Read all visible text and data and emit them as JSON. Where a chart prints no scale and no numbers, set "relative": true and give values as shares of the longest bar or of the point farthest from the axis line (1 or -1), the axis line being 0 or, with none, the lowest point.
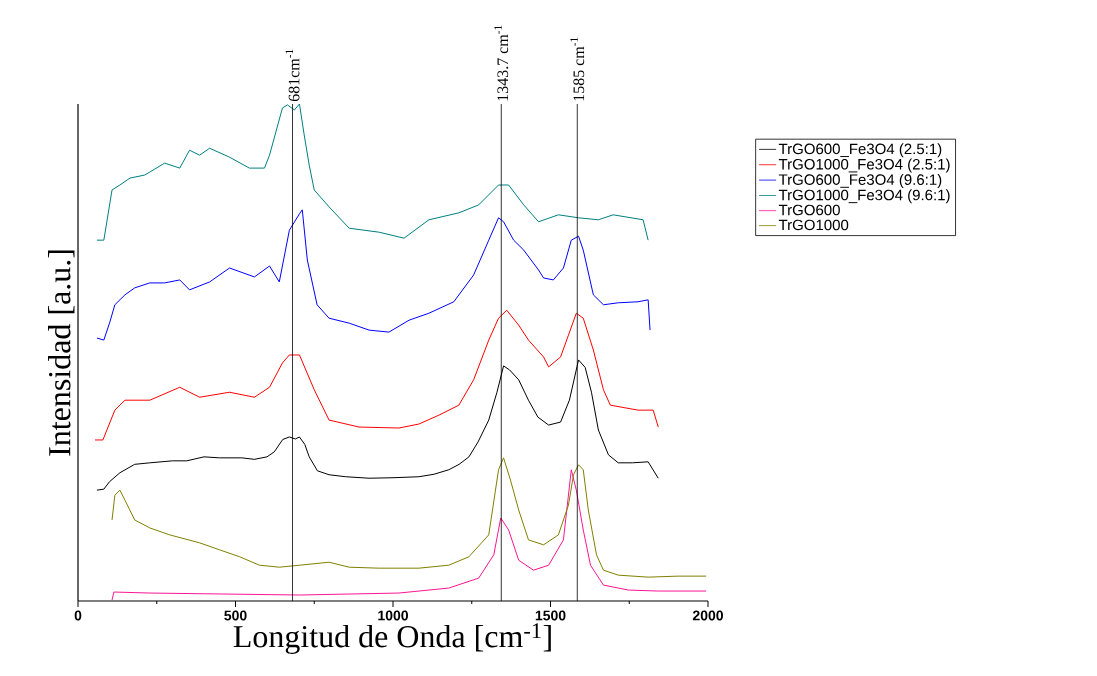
{
  "chart_data": {
    "type": "line",
    "relative": true,
    "xlabel": "Longitud de Onda  [cm$^{-1}$]",
    "ylabel": "Intensidad [a.u.]",
    "xlim": [
      0,
      2000
    ],
    "xticks": [
      0,
      500,
      1000,
      1500,
      2000
    ],
    "legend": "right",
    "ref_lines": [
      {
        "axis": "x",
        "value": 681,
        "label": "681cm$^{-1}$",
        "color": "#000000"
      },
      {
        "axis": "x",
        "value": 1343.7,
        "label": "1343.7 cm$^{-1}$",
        "color": "#000000"
      },
      {
        "axis": "x",
        "value": 1585,
        "label": "1585 cm$^{-1}$",
        "color": "#000000"
      }
    ],
    "series": [
      {
        "name": "TrGO600_Fe3O4 (2.5:1)",
        "color": "#000000",
        "x": [
          60,
          82,
          100,
          133,
          180,
          228,
          300,
          345,
          400,
          449,
          520,
          560,
          600,
          623,
          650,
          671,
          690,
          703,
          720,
          734,
          760,
          797,
          850,
          924,
          1000,
          1082,
          1130,
          1177,
          1210,
          1241,
          1270,
          1304,
          1330,
          1351,
          1370,
          1399,
          1430,
          1460,
          1494,
          1532,
          1560,
          1589,
          1610,
          1630,
          1652,
          1684,
          1715,
          1760,
          1810,
          1842
        ],
        "values": [
          0.223,
          0.225,
          0.24,
          0.258,
          0.275,
          0.278,
          0.282,
          0.282,
          0.29,
          0.288,
          0.288,
          0.285,
          0.29,
          0.3,
          0.325,
          0.33,
          0.326,
          0.33,
          0.315,
          0.29,
          0.262,
          0.254,
          0.25,
          0.247,
          0.248,
          0.25,
          0.255,
          0.264,
          0.275,
          0.29,
          0.32,
          0.364,
          0.42,
          0.473,
          0.465,
          0.445,
          0.404,
          0.37,
          0.354,
          0.36,
          0.404,
          0.485,
          0.47,
          0.42,
          0.344,
          0.294,
          0.278,
          0.278,
          0.28,
          0.247
        ]
      },
      {
        "name": "TrGO1000_Fe3O4 (2.5:1)",
        "color": "#ff0000",
        "x": [
          54,
          79,
          117,
          149,
          228,
          323,
          386,
          481,
          560,
          608,
          649,
          671,
          703,
          750,
          797,
          892,
          1019,
          1082,
          1146,
          1209,
          1256,
          1304,
          1335,
          1361,
          1399,
          1430,
          1478,
          1494,
          1532,
          1557,
          1582,
          1604,
          1636,
          1668,
          1690,
          1778,
          1826,
          1842
        ],
        "values": [
          0.324,
          0.324,
          0.384,
          0.404,
          0.404,
          0.43,
          0.41,
          0.42,
          0.41,
          0.43,
          0.479,
          0.495,
          0.495,
          0.425,
          0.364,
          0.35,
          0.348,
          0.356,
          0.374,
          0.394,
          0.445,
          0.525,
          0.569,
          0.585,
          0.555,
          0.525,
          0.491,
          0.471,
          0.491,
          0.535,
          0.579,
          0.569,
          0.505,
          0.425,
          0.394,
          0.384,
          0.384,
          0.35
        ]
      },
      {
        "name": "TrGO600_Fe3O4 (9.6:1)",
        "color": "#0000ff",
        "x": [
          60,
          82,
          101,
          117,
          149,
          180,
          228,
          275,
          323,
          354,
          418,
          481,
          560,
          608,
          639,
          671,
          703,
          712,
          728,
          759,
          797,
          861,
          924,
          987,
          1051,
          1114,
          1193,
          1256,
          1304,
          1335,
          1351,
          1383,
          1415,
          1462,
          1478,
          1509,
          1541,
          1566,
          1589,
          1604,
          1636,
          1668,
          1715,
          1778,
          1810,
          1816
        ],
        "values": [
          0.529,
          0.525,
          0.561,
          0.596,
          0.616,
          0.63,
          0.64,
          0.64,
          0.646,
          0.626,
          0.642,
          0.67,
          0.652,
          0.674,
          0.642,
          0.746,
          0.779,
          0.787,
          0.686,
          0.596,
          0.569,
          0.559,
          0.545,
          0.541,
          0.565,
          0.579,
          0.602,
          0.656,
          0.726,
          0.771,
          0.763,
          0.726,
          0.706,
          0.666,
          0.65,
          0.646,
          0.67,
          0.726,
          0.734,
          0.706,
          0.616,
          0.596,
          0.6,
          0.602,
          0.606,
          0.545
        ]
      },
      {
        "name": "TrGO1000_Fe3O4 (9.6:1)",
        "color": "#008080",
        "x": [
          60,
          82,
          108,
          133,
          165,
          212,
          275,
          323,
          354,
          386,
          418,
          481,
          544,
          592,
          608,
          649,
          665,
          687,
          703,
          718,
          734,
          750,
          797,
          861,
          956,
          1035,
          1114,
          1209,
          1272,
          1335,
          1367,
          1415,
          1462,
          1525,
          1589,
          1652,
          1699,
          1794,
          1810
        ],
        "values": [
          0.726,
          0.726,
          0.827,
          0.837,
          0.851,
          0.857,
          0.881,
          0.871,
          0.907,
          0.897,
          0.911,
          0.893,
          0.871,
          0.871,
          0.897,
          0.992,
          0.998,
          0.988,
          1.0,
          0.938,
          0.877,
          0.827,
          0.793,
          0.75,
          0.742,
          0.73,
          0.767,
          0.781,
          0.797,
          0.837,
          0.837,
          0.797,
          0.763,
          0.777,
          0.771,
          0.767,
          0.777,
          0.767,
          0.726
        ]
      },
      {
        "name": "TrGO600",
        "color": "#ff1493",
        "x": [
          108,
          114,
          228,
          703,
          1019,
          1177,
          1272,
          1320,
          1342,
          1367,
          1399,
          1446,
          1494,
          1541,
          1566,
          1582,
          1604,
          1627,
          1668,
          1747,
          1842,
          1994
        ],
        "values": [
          0.002,
          0.018,
          0.016,
          0.012,
          0.016,
          0.026,
          0.046,
          0.093,
          0.167,
          0.143,
          0.082,
          0.062,
          0.072,
          0.123,
          0.264,
          0.223,
          0.143,
          0.072,
          0.032,
          0.022,
          0.02,
          0.02
        ]
      },
      {
        "name": "TrGO1000",
        "color": "#808000",
        "x": [
          108,
          117,
          133,
          149,
          180,
          228,
          291,
          386,
          449,
          513,
          576,
          639,
          703,
          797,
          861,
          956,
          1082,
          1177,
          1241,
          1304,
          1335,
          1351,
          1373,
          1399,
          1430,
          1478,
          1525,
          1557,
          1573,
          1589,
          1604,
          1620,
          1646,
          1668,
          1715,
          1810,
          1905,
          1994
        ],
        "values": [
          0.163,
          0.213,
          0.223,
          0.203,
          0.163,
          0.147,
          0.133,
          0.117,
          0.103,
          0.089,
          0.072,
          0.068,
          0.072,
          0.078,
          0.068,
          0.066,
          0.066,
          0.072,
          0.089,
          0.133,
          0.264,
          0.288,
          0.243,
          0.183,
          0.123,
          0.113,
          0.133,
          0.193,
          0.254,
          0.274,
          0.264,
          0.183,
          0.093,
          0.062,
          0.052,
          0.048,
          0.05,
          0.05
        ]
      }
    ]
  }
}
